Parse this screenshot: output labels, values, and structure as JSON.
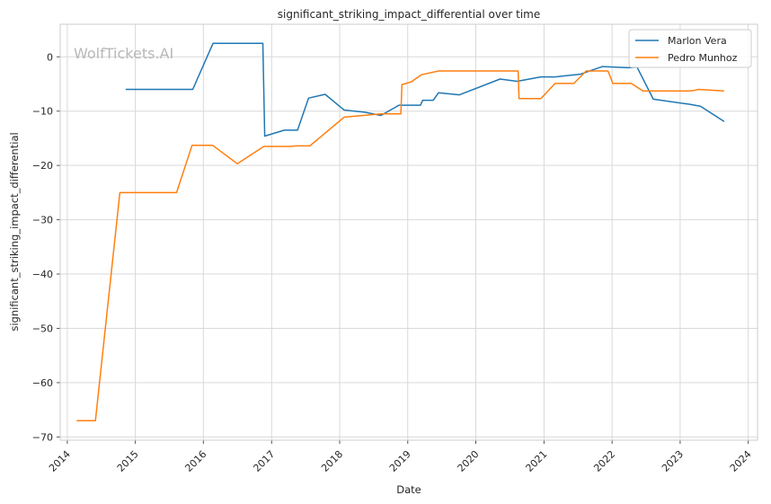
{
  "chart_data": {
    "type": "line",
    "title": "significant_striking_impact_differential over time",
    "xlabel": "Date",
    "ylabel": "significant_striking_impact_differential",
    "watermark": "WolfTickets.AI",
    "x_ticks": [
      "2014",
      "2015",
      "2016",
      "2017",
      "2018",
      "2019",
      "2020",
      "2021",
      "2022",
      "2023",
      "2024"
    ],
    "y_ticks": [
      "0",
      "−10",
      "−20",
      "−30",
      "−40",
      "−50",
      "−60",
      "−70"
    ],
    "xlim": [
      "2013-11-24",
      "2024-02-20"
    ],
    "ylim": [
      -70.6,
      6
    ],
    "grid": true,
    "legend_position": "top-right",
    "series": [
      {
        "name": "Marlon Vera",
        "color": "#1f77b4",
        "points": [
          [
            "2014-11-10",
            -6.0
          ],
          [
            "2015-11-05",
            -6.0
          ],
          [
            "2016-02-22",
            2.5
          ],
          [
            "2016-11-15",
            2.5
          ],
          [
            "2016-11-25",
            -14.6
          ],
          [
            "2017-03-10",
            -13.5
          ],
          [
            "2017-05-20",
            -13.5
          ],
          [
            "2017-07-18",
            -7.6
          ],
          [
            "2017-10-15",
            -6.9
          ],
          [
            "2018-01-25",
            -9.8
          ],
          [
            "2018-05-15",
            -10.2
          ],
          [
            "2018-08-10",
            -10.8
          ],
          [
            "2018-11-15",
            -8.9
          ],
          [
            "2019-03-10",
            -8.9
          ],
          [
            "2019-03-22",
            -8.0
          ],
          [
            "2019-05-18",
            -8.0
          ],
          [
            "2019-06-15",
            -6.6
          ],
          [
            "2019-10-05",
            -7.0
          ],
          [
            "2020-05-10",
            -4.1
          ],
          [
            "2020-08-10",
            -4.5
          ],
          [
            "2020-12-15",
            -3.7
          ],
          [
            "2021-03-01",
            -3.7
          ],
          [
            "2021-07-15",
            -3.2
          ],
          [
            "2021-11-10",
            -1.8
          ],
          [
            "2022-04-01",
            -2.0
          ],
          [
            "2022-05-15",
            -1.9
          ],
          [
            "2022-08-10",
            -7.8
          ],
          [
            "2023-02-15",
            -8.7
          ],
          [
            "2023-04-20",
            -9.1
          ],
          [
            "2023-08-25",
            -11.9
          ]
        ]
      },
      {
        "name": "Pedro Munhoz",
        "color": "#ff7f0e",
        "points": [
          [
            "2014-02-20",
            -67.0
          ],
          [
            "2014-06-01",
            -67.0
          ],
          [
            "2014-10-10",
            -25.0
          ],
          [
            "2015-08-10",
            -25.0
          ],
          [
            "2015-11-01",
            -16.3
          ],
          [
            "2016-02-20",
            -16.3
          ],
          [
            "2016-07-01",
            -19.7
          ],
          [
            "2016-11-20",
            -16.5
          ],
          [
            "2017-04-10",
            -16.5
          ],
          [
            "2017-05-10",
            -16.4
          ],
          [
            "2017-07-25",
            -16.4
          ],
          [
            "2018-01-25",
            -11.1
          ],
          [
            "2018-08-10",
            -10.5
          ],
          [
            "2018-11-25",
            -10.5
          ],
          [
            "2018-12-01",
            -5.1
          ],
          [
            "2019-01-20",
            -4.6
          ],
          [
            "2019-03-15",
            -3.3
          ],
          [
            "2019-06-15",
            -2.6
          ],
          [
            "2020-08-15",
            -2.6
          ],
          [
            "2020-08-20",
            -7.7
          ],
          [
            "2020-12-15",
            -7.7
          ],
          [
            "2021-03-01",
            -4.9
          ],
          [
            "2021-06-10",
            -4.9
          ],
          [
            "2021-08-15",
            -2.6
          ],
          [
            "2021-12-10",
            -2.6
          ],
          [
            "2022-01-05",
            -4.9
          ],
          [
            "2022-04-15",
            -4.9
          ],
          [
            "2022-06-15",
            -6.3
          ],
          [
            "2023-02-15",
            -6.3
          ],
          [
            "2023-03-15",
            -6.2
          ],
          [
            "2023-04-10",
            -6.0
          ],
          [
            "2023-08-25",
            -6.3
          ]
        ]
      }
    ]
  }
}
